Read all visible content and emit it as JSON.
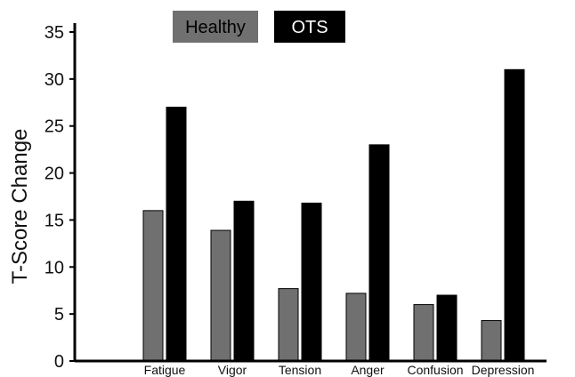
{
  "chart_data": {
    "type": "bar",
    "categories": [
      "Fatigue",
      "Vigor",
      "Tension",
      "Anger",
      "Confusion",
      "Depression"
    ],
    "series": [
      {
        "name": "Healthy",
        "values": [
          16,
          13.9,
          7.7,
          7.2,
          6.0,
          4.3
        ],
        "color": "#707070"
      },
      {
        "name": "OTS",
        "values": [
          27,
          17,
          16.8,
          23,
          7.0,
          31
        ],
        "color": "#000000"
      }
    ],
    "ylabel": "T-Score Change",
    "ylim": [
      0,
      35
    ],
    "yticks": [
      0,
      5,
      10,
      15,
      20,
      25,
      30,
      35
    ],
    "grid": false,
    "legend": "top"
  }
}
